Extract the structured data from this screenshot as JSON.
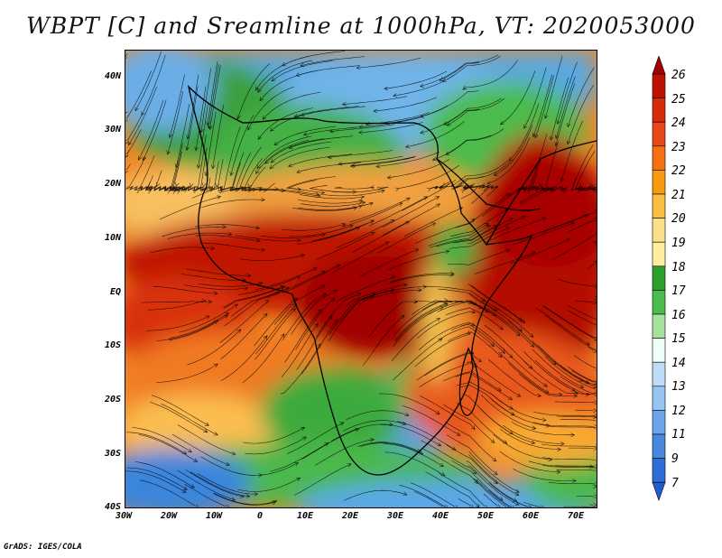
{
  "title": "WBPT [C] and Sreamline at 1000hPa, VT: 2020053000",
  "credit": "GrADS: IGES/COLA",
  "map": {
    "y_ticks": [
      "40N",
      "30N",
      "20N",
      "10N",
      "EQ",
      "10S",
      "20S",
      "30S",
      "40S"
    ],
    "x_ticks": [
      "30W",
      "20W",
      "10W",
      "0",
      "10E",
      "20E",
      "30E",
      "40E",
      "50E",
      "60E",
      "70E"
    ],
    "lat_range": [
      -40,
      45
    ],
    "lon_range": [
      -30,
      75
    ]
  },
  "colorbar": {
    "labels": [
      "26",
      "25",
      "24",
      "23",
      "22",
      "21",
      "20",
      "19",
      "18",
      "17",
      "16",
      "15",
      "14",
      "13",
      "12",
      "11",
      "9",
      "7"
    ],
    "colors": [
      "#a00000",
      "#be1200",
      "#d62c0a",
      "#e84818",
      "#f47010",
      "#f89a10",
      "#fbbd40",
      "#fbe08a",
      "#ffeea0",
      "#2ca02c",
      "#4cbc4c",
      "#a8e0a0",
      "#f0fff8",
      "#bcdcf8",
      "#98c4f2",
      "#6aa4ea",
      "#4a88e0",
      "#2f6ed6",
      "#1e5cd0"
    ]
  }
}
